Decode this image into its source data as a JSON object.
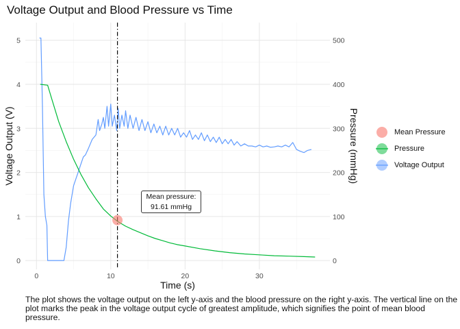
{
  "title": "Voltage Output and Blood Pressure vs Time",
  "caption": "The plot shows the voltage output on the left y-axis and the blood pressure on the right y-axis. The vertical line on the plot marks the peak in the voltage output cycle of greatest amplitude, which signifies the point of mean blood pressure.",
  "chart_data": {
    "type": "line",
    "title": "Voltage Output and Blood Pressure vs Time",
    "xlabel": "Time (s)",
    "ylabel_left": "Voltage Output (V)",
    "ylabel_right": "Pressure (mmHg)",
    "xlim": [
      -1.5,
      39.5
    ],
    "ylim_left": [
      -0.2,
      5.4
    ],
    "ylim_right": [
      -20,
      540
    ],
    "x_ticks": [
      0,
      10,
      20,
      30
    ],
    "y_left_ticks": [
      0,
      1,
      2,
      3,
      4,
      5
    ],
    "y_right_ticks": [
      0,
      100,
      200,
      300,
      400,
      500
    ],
    "grid": true,
    "legend_position": "right",
    "vertical_line_x": 10.9,
    "colors": {
      "mean_pressure": "#F8766D",
      "pressure": "#00BA38",
      "voltage": "#619CFF"
    },
    "series": [
      {
        "name": "Voltage Output",
        "axis": "left",
        "x": [
          0.4,
          0.6,
          0.8,
          1.0,
          1.2,
          1.4,
          1.5,
          1.6,
          2.0,
          2.5,
          3.0,
          3.5,
          3.7,
          4.0,
          4.3,
          4.6,
          5.0,
          5.3,
          5.6,
          6.0,
          6.3,
          6.6,
          7.0,
          7.5,
          8.0,
          8.3,
          8.5,
          8.8,
          9.0,
          9.2,
          9.5,
          9.7,
          10.0,
          10.2,
          10.5,
          10.8,
          11.0,
          11.2,
          11.5,
          11.8,
          12.0,
          12.3,
          12.6,
          13.0,
          13.4,
          13.8,
          14.2,
          14.6,
          15.0,
          15.4,
          15.8,
          16.2,
          16.6,
          17.0,
          17.4,
          17.8,
          18.2,
          18.6,
          19.0,
          19.4,
          19.8,
          20.2,
          20.6,
          21.0,
          21.4,
          21.8,
          22.2,
          22.6,
          23.0,
          23.4,
          23.8,
          24.2,
          24.6,
          25.0,
          25.4,
          25.8,
          26.2,
          26.6,
          27.0,
          27.5,
          28.0,
          28.5,
          29.0,
          29.5,
          30.0,
          30.5,
          31.0,
          31.5,
          32.0,
          32.5,
          33.0,
          33.5,
          34.0,
          34.5,
          35.0,
          35.5,
          36.0,
          36.5,
          37.0
        ],
        "values": [
          5.05,
          5.05,
          3.5,
          1.5,
          1.0,
          0.8,
          0.0,
          0.0,
          0.0,
          0.0,
          0.0,
          0.0,
          0.0,
          0.3,
          0.9,
          1.3,
          1.7,
          1.85,
          2.0,
          2.2,
          2.35,
          2.4,
          2.55,
          2.75,
          2.85,
          3.2,
          2.95,
          3.1,
          3.25,
          3.0,
          3.5,
          3.05,
          3.55,
          3.05,
          3.3,
          2.95,
          3.45,
          3.0,
          3.3,
          3.05,
          3.4,
          3.0,
          3.3,
          3.0,
          3.25,
          2.95,
          3.2,
          2.95,
          3.15,
          2.9,
          3.1,
          2.9,
          3.05,
          2.85,
          3.05,
          2.85,
          3.0,
          2.85,
          3.0,
          2.8,
          2.9,
          2.8,
          2.95,
          2.75,
          2.85,
          2.75,
          2.9,
          2.72,
          2.85,
          2.7,
          2.8,
          2.68,
          2.8,
          2.65,
          2.75,
          2.65,
          2.75,
          2.62,
          2.7,
          2.6,
          2.65,
          2.6,
          2.6,
          2.58,
          2.62,
          2.58,
          2.6,
          2.57,
          2.58,
          2.6,
          2.58,
          2.62,
          2.58,
          2.68,
          2.52,
          2.48,
          2.45,
          2.5,
          2.52
        ]
      },
      {
        "name": "Pressure",
        "axis": "right",
        "x": [
          0.5,
          1.5,
          2.0,
          3.0,
          4.0,
          5.0,
          6.0,
          7.0,
          8.0,
          9.0,
          10.0,
          11.0,
          12.0,
          13.0,
          14.0,
          15.0,
          16.0,
          17.0,
          18.0,
          19.0,
          20.0,
          22.0,
          24.0,
          26.0,
          28.0,
          30.0,
          32.0,
          34.0,
          36.0,
          37.5
        ],
        "values": [
          400,
          398,
          370,
          315,
          270,
          230,
          195,
          165,
          140,
          117,
          101,
          88,
          78,
          70,
          63,
          56,
          50,
          45,
          40,
          36,
          33,
          27,
          22,
          18,
          15,
          13,
          11,
          10,
          9,
          8
        ]
      },
      {
        "name": "Mean Pressure",
        "axis": "right",
        "type": "point",
        "x": [
          10.9
        ],
        "values": [
          91.61
        ]
      }
    ],
    "annotations": [
      {
        "line1": "Mean pressure:",
        "line2": "91.61 mmHg"
      }
    ]
  },
  "legend": [
    {
      "label": "Mean Pressure"
    },
    {
      "label": "Pressure"
    },
    {
      "label": "Voltage Output"
    }
  ]
}
